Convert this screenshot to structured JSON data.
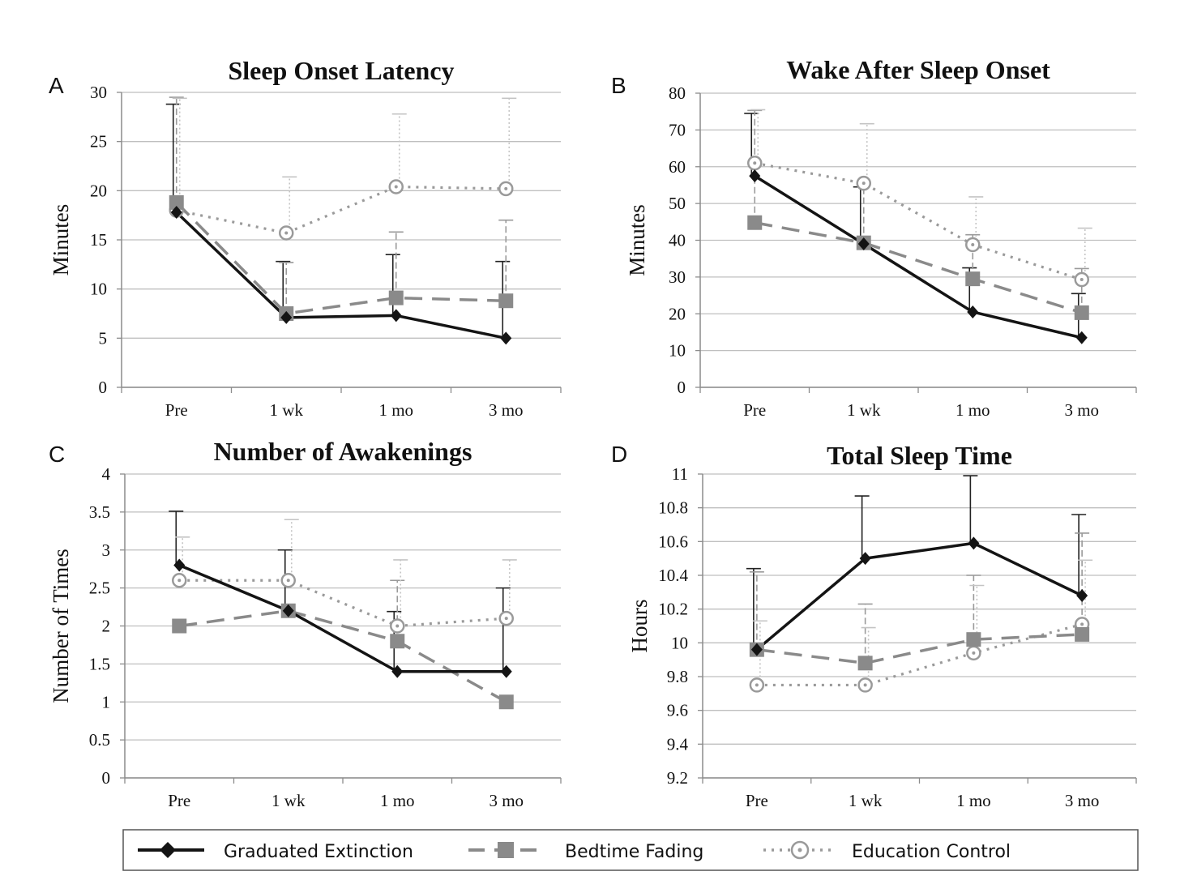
{
  "chart_data": [
    {
      "panel": "A",
      "type": "line",
      "title": "Sleep Onset Latency",
      "ylabel": "Minutes",
      "xlabel": "",
      "categories": [
        "Pre",
        "1 wk",
        "1 mo",
        "3 mo"
      ],
      "ylim": [
        0,
        30
      ],
      "yticks": [
        "0",
        "5",
        "10",
        "15",
        "20",
        "25",
        "30"
      ],
      "grid": true,
      "series": [
        {
          "name": "Graduated Extinction",
          "values": [
            17.8,
            7.1,
            7.3,
            5.0
          ],
          "error": [
            11.0,
            5.7,
            6.2,
            7.8
          ]
        },
        {
          "name": "Bedtime Fading",
          "values": [
            18.8,
            7.5,
            9.1,
            8.8
          ],
          "error": [
            10.7,
            5.2,
            6.7,
            8.2
          ]
        },
        {
          "name": "Education Control",
          "values": [
            18.0,
            15.7,
            20.4,
            20.2
          ],
          "error": [
            11.4,
            5.7,
            7.4,
            9.2
          ]
        }
      ]
    },
    {
      "panel": "B",
      "type": "line",
      "title": "Wake After Sleep Onset",
      "ylabel": "Minutes",
      "xlabel": "",
      "categories": [
        "Pre",
        "1 wk",
        "1 mo",
        "3 mo"
      ],
      "ylim": [
        0,
        80
      ],
      "yticks": [
        "0",
        "10",
        "20",
        "30",
        "40",
        "50",
        "60",
        "70",
        "80"
      ],
      "grid": true,
      "series": [
        {
          "name": "Graduated Extinction",
          "values": [
            57.5,
            39.0,
            20.5,
            13.5
          ],
          "error": [
            17.0,
            15.5,
            12.0,
            12.0
          ]
        },
        {
          "name": "Bedtime Fading",
          "values": [
            44.8,
            39.3,
            29.5,
            20.3
          ],
          "error": [
            30.5,
            16.0,
            12.0,
            12.0
          ]
        },
        {
          "name": "Education Control",
          "values": [
            61.0,
            55.5,
            38.8,
            29.3
          ],
          "error": [
            14.5,
            16.2,
            13.0,
            14.0
          ]
        }
      ]
    },
    {
      "panel": "C",
      "type": "line",
      "title": "Number of Awakenings",
      "ylabel": "Number of Times",
      "xlabel": "",
      "categories": [
        "Pre",
        "1 wk",
        "1 mo",
        "3 mo"
      ],
      "ylim": [
        0,
        4
      ],
      "yticks": [
        "0",
        "0.5",
        "1",
        "1.5",
        "2",
        "2.5",
        "3",
        "3.5",
        "4"
      ],
      "grid": true,
      "series": [
        {
          "name": "Graduated Extinction",
          "values": [
            2.8,
            2.2,
            1.4,
            1.4
          ],
          "error": [
            0.71,
            0.8,
            0.79,
            1.1
          ]
        },
        {
          "name": "Bedtime Fading",
          "values": [
            2.0,
            2.2,
            1.8,
            1.0
          ],
          "error": [
            0.0,
            0.0,
            0.8,
            0.0
          ]
        },
        {
          "name": "Education Control",
          "values": [
            2.6,
            2.6,
            2.0,
            2.1
          ],
          "error": [
            0.57,
            0.8,
            0.87,
            0.77
          ]
        }
      ]
    },
    {
      "panel": "D",
      "type": "line",
      "title": "Total Sleep Time",
      "ylabel": "Hours",
      "xlabel": "",
      "categories": [
        "Pre",
        "1 wk",
        "1 mo",
        "3 mo"
      ],
      "ylim": [
        9.2,
        11
      ],
      "yticks": [
        "9.2",
        "9.4",
        "9.6",
        "9.8",
        "10",
        "10.2",
        "10.4",
        "10.6",
        "10.8",
        "11"
      ],
      "grid": true,
      "series": [
        {
          "name": "Graduated Extinction",
          "values": [
            9.96,
            10.5,
            10.59,
            10.28
          ],
          "error": [
            0.48,
            0.37,
            0.4,
            0.48
          ]
        },
        {
          "name": "Bedtime Fading",
          "values": [
            9.96,
            9.88,
            10.02,
            10.05
          ],
          "error": [
            0.46,
            0.35,
            0.38,
            0.6
          ]
        },
        {
          "name": "Education Control",
          "values": [
            9.75,
            9.75,
            9.94,
            10.11
          ],
          "error": [
            0.38,
            0.34,
            0.4,
            0.38
          ]
        }
      ]
    }
  ],
  "legend": {
    "position": "bottom",
    "items": [
      {
        "label": "Graduated Extinction",
        "marker": "diamond",
        "line": "solid",
        "color": "#141414"
      },
      {
        "label": "Bedtime Fading",
        "marker": "square",
        "line": "dashed",
        "color": "#8a8a8a"
      },
      {
        "label": "Education Control",
        "marker": "open-circle",
        "line": "dotted",
        "color": "#9a9a9a"
      }
    ]
  },
  "colors": {
    "graduated_extinction": "#141414",
    "bedtime_fading": "#8a8a8a",
    "education_control": "#9a9a9a",
    "error_bars_light": "#c4c4c4",
    "grid": "#bfbfbf",
    "axis": "#8c8c8c"
  }
}
